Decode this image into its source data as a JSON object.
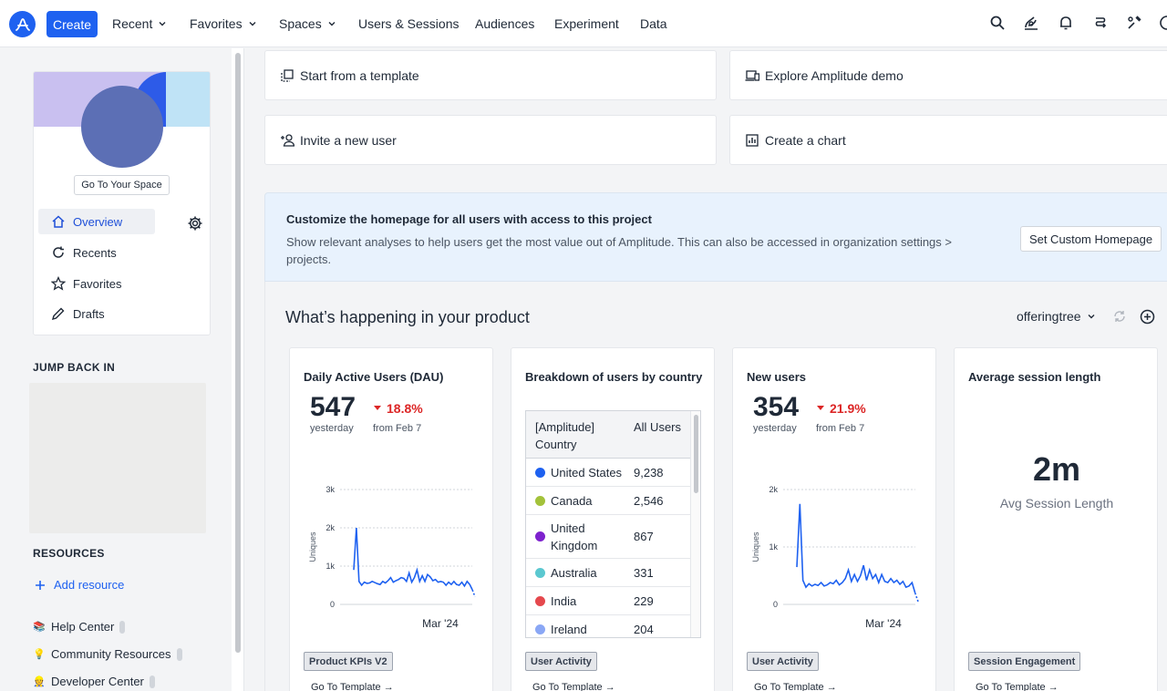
{
  "colors": {
    "accent": "#1e61f0",
    "negative": "#dc2626",
    "line": "#1e61f0"
  },
  "nav": {
    "create_label": "Create",
    "items": [
      {
        "label": "Recent",
        "dropdown": true
      },
      {
        "label": "Favorites",
        "dropdown": true
      },
      {
        "label": "Spaces",
        "dropdown": true
      },
      {
        "label": "Users & Sessions",
        "dropdown": false
      },
      {
        "label": "Audiences",
        "dropdown": false
      },
      {
        "label": "Experiment",
        "dropdown": false
      },
      {
        "label": "Data",
        "dropdown": false
      }
    ],
    "icons": [
      "search-icon",
      "assistant-icon",
      "bell-icon",
      "workflow-icon",
      "tools-icon",
      "help-icon"
    ]
  },
  "sidebar": {
    "goto_space_label": "Go To Your Space",
    "items": [
      {
        "label": "Overview",
        "icon": "home-icon",
        "active": true
      },
      {
        "label": "Recents",
        "icon": "recents-icon",
        "active": false
      },
      {
        "label": "Favorites",
        "icon": "star-icon",
        "active": false
      },
      {
        "label": "Drafts",
        "icon": "pencil-icon",
        "active": false
      }
    ],
    "jump_back_title": "JUMP BACK IN",
    "resources_title": "RESOURCES",
    "add_resource_label": "Add resource",
    "resources": [
      {
        "label": "Help Center",
        "icon": "book-icon"
      },
      {
        "label": "Community Resources",
        "icon": "bulb-icon"
      },
      {
        "label": "Developer Center",
        "icon": "developer-icon"
      }
    ]
  },
  "quick_actions": [
    {
      "label": "Start from a template",
      "icon": "template-icon"
    },
    {
      "label": "Explore Amplitude demo",
      "icon": "demo-icon"
    },
    {
      "label": "Invite a new user",
      "icon": "invite-icon"
    },
    {
      "label": "Create a chart",
      "icon": "chart-icon"
    }
  ],
  "customize": {
    "title": "Customize the homepage for all users with access to this project",
    "description": "Show relevant analyses to help users get the most value out of Amplitude. This can also be accessed in organization settings > projects.",
    "button_label": "Set Custom Homepage"
  },
  "happening": {
    "title": "What’s happening in your product",
    "project_label": "offeringtree"
  },
  "cards": {
    "dau": {
      "title": "Daily Active Users (DAU)",
      "value": "547",
      "value_sub": "yesterday",
      "delta": "18.8%",
      "delta_sub": "from Feb 7",
      "tag": "Product KPIs V2",
      "goto": "Go To Template →"
    },
    "country": {
      "title": "Breakdown of users by country",
      "col1": "[Amplitude] Country",
      "col2": "All Users",
      "rows": [
        {
          "country": "United States",
          "users": "9,238",
          "color": "#1e61f0"
        },
        {
          "country": "Canada",
          "users": "2,546",
          "color": "#a3c23a"
        },
        {
          "country": "United Kingdom",
          "users": "867",
          "color": "#7e22ce"
        },
        {
          "country": "Australia",
          "users": "331",
          "color": "#5bc8d0"
        },
        {
          "country": "India",
          "users": "229",
          "color": "#e5484d"
        },
        {
          "country": "Ireland",
          "users": "204",
          "color": "#8aa7f5"
        }
      ],
      "tag": "User Activity",
      "goto": "Go To Template →"
    },
    "new_users": {
      "title": "New users",
      "value": "354",
      "value_sub": "yesterday",
      "delta": "21.9%",
      "delta_sub": "from Feb 7",
      "tag": "User Activity",
      "goto": "Go To Template →"
    },
    "session": {
      "title": "Average session length",
      "value": "2m",
      "value_sub": "Avg Session Length",
      "tag": "Session Engagement",
      "goto": "Go To Template →"
    }
  },
  "chart_data": [
    {
      "type": "line",
      "ylabel": "Uniques",
      "yticks": [
        "0",
        "1k",
        "2k",
        "3k"
      ],
      "ylim": [
        0,
        3000
      ],
      "xtick_label": "Mar '24",
      "series": [
        {
          "values": [
            900,
            2000,
            600,
            500,
            580,
            550,
            560,
            600,
            570,
            540,
            520,
            600,
            560,
            620,
            700,
            580,
            620,
            650,
            700,
            680,
            600,
            820,
            580,
            700,
            900,
            600,
            750,
            600,
            780,
            720,
            620,
            650,
            580,
            600,
            580,
            500,
            580,
            520,
            600,
            520,
            500,
            580,
            480,
            600,
            520,
            380,
            200
          ]
        }
      ]
    },
    {
      "type": "line",
      "ylabel": "Uniques",
      "yticks": [
        "0",
        "1k",
        "2k"
      ],
      "ylim": [
        0,
        2000
      ],
      "xtick_label": "Mar '24",
      "series": [
        {
          "values": [
            650,
            1750,
            420,
            300,
            360,
            320,
            350,
            330,
            380,
            320,
            340,
            380,
            360,
            420,
            340,
            380,
            450,
            600,
            400,
            520,
            400,
            500,
            680,
            420,
            600,
            450,
            520,
            380,
            520,
            400,
            380,
            450,
            380,
            420,
            350,
            400,
            300,
            320,
            380,
            200,
            50
          ]
        }
      ]
    }
  ]
}
